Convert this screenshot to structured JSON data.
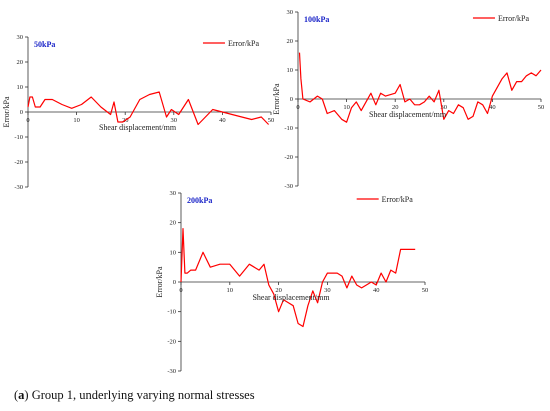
{
  "caption": {
    "letter": "a",
    "text": "Group 1, underlying varying normal stresses"
  },
  "chart_data": [
    {
      "type": "line",
      "title": "50kPa",
      "xlabel": "Shear displacement/mm",
      "ylabel": "Error/kPa",
      "legend_position": "top-right",
      "xlim": [
        0,
        50
      ],
      "ylim": [
        -30,
        30
      ],
      "xticks": [
        0,
        10,
        20,
        30,
        40,
        50
      ],
      "yticks": [
        -30,
        -20,
        -10,
        0,
        10,
        20,
        30
      ],
      "series": [
        {
          "name": "Error/kPa",
          "color": "#ff0000",
          "x": [
            0,
            0.4,
            0.9,
            1.5,
            2.5,
            3.5,
            5,
            7,
            9,
            11,
            13,
            15,
            17,
            17.7,
            18.5,
            19.5,
            21,
            23,
            25,
            27,
            28.5,
            29.5,
            31,
            33,
            35,
            36,
            38,
            40,
            42,
            44,
            46,
            48,
            49.5
          ],
          "y": [
            2,
            6,
            6,
            2,
            2,
            5,
            5,
            3,
            1.5,
            3,
            6,
            2,
            -1,
            4,
            -4,
            -4,
            -2,
            5,
            7,
            8,
            -2,
            1,
            -1,
            5,
            -5,
            -3,
            1,
            0,
            -1,
            -2,
            -3,
            -2,
            -5
          ]
        }
      ]
    },
    {
      "type": "line",
      "title": "100kPa",
      "xlabel": "Shear displacement/mm",
      "ylabel": "Error/kPa",
      "legend_position": "top-right",
      "xlim": [
        0,
        50
      ],
      "ylim": [
        -30,
        30
      ],
      "xticks": [
        0,
        10,
        20,
        30,
        40,
        50
      ],
      "yticks": [
        -30,
        -20,
        -10,
        0,
        10,
        20,
        30
      ],
      "series": [
        {
          "name": "Error/kPa",
          "color": "#ff0000",
          "x": [
            0.3,
            0.6,
            1,
            2.5,
            4,
            5,
            6,
            7.5,
            9,
            10,
            11,
            12,
            13,
            15,
            16,
            17,
            18,
            20,
            21,
            22,
            23,
            24,
            25,
            26,
            27,
            28,
            29,
            30,
            31,
            32,
            33,
            34,
            35,
            36,
            37,
            38,
            39,
            40,
            42,
            43,
            44,
            45,
            46,
            47,
            48,
            49,
            50
          ],
          "y": [
            16,
            7,
            0,
            -1,
            1,
            0,
            -5,
            -4,
            -7,
            -8,
            -3,
            -1,
            -4,
            2,
            -2,
            2,
            1,
            2,
            5,
            -1,
            0,
            -2,
            -2,
            -1,
            1,
            -1,
            3,
            -7,
            -4,
            -5,
            -2,
            -3,
            -7,
            -6,
            -1,
            -2,
            -5,
            1,
            7,
            9,
            3,
            6,
            6,
            8,
            9,
            8,
            10
          ]
        }
      ]
    },
    {
      "type": "line",
      "title": "200kPa",
      "xlabel": "Shear displacement/mm",
      "ylabel": "Error/kPa",
      "legend_position": "top-right",
      "xlim": [
        0,
        50
      ],
      "ylim": [
        -30,
        30
      ],
      "xticks": [
        0,
        10,
        20,
        30,
        40,
        50
      ],
      "yticks": [
        -30,
        -20,
        -10,
        0,
        10,
        20,
        30
      ],
      "series": [
        {
          "name": "Error/kPa",
          "color": "#ff0000",
          "x": [
            0,
            0.4,
            0.8,
            1.3,
            2,
            3,
            4.5,
            6,
            8,
            10,
            12,
            14,
            16,
            17,
            18,
            19,
            20,
            21,
            22,
            23,
            24,
            25,
            26,
            27,
            28,
            29,
            30,
            32,
            33,
            34,
            35,
            36,
            37,
            38,
            39,
            40,
            41,
            42,
            43,
            44,
            45,
            46,
            47,
            48
          ],
          "y": [
            0,
            18,
            3,
            3,
            4,
            4,
            10,
            5,
            6,
            6,
            2,
            6,
            4,
            6,
            -1,
            -4,
            -10,
            -6,
            -7,
            -8,
            -14,
            -15,
            -8,
            -3,
            -7,
            0,
            3,
            3,
            2,
            -2,
            2,
            -1,
            -2,
            -1,
            0,
            -1,
            3,
            0,
            4,
            3,
            11,
            11,
            11,
            11
          ]
        }
      ]
    }
  ]
}
